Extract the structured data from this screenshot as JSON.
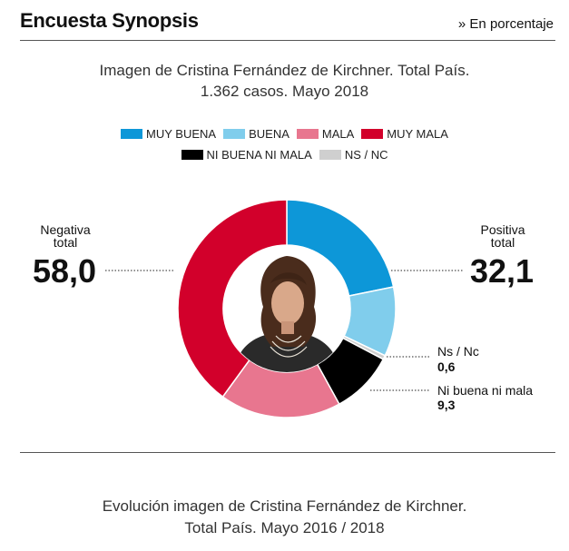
{
  "header": {
    "brand": "Encuesta Synopsis",
    "unit": "» En porcentaje"
  },
  "title": {
    "line1": "Imagen de Cristina Fernández de Kirchner. Total País.",
    "line2": "1.362 casos. Mayo 2018"
  },
  "chart_data": {
    "type": "pie",
    "title": "Imagen de Cristina Fernández de Kirchner. Total País. 1.362 casos. Mayo 2018",
    "legend_position": "top",
    "categories": [
      "MUY BUENA",
      "BUENA",
      "NS / NC",
      "NI BUENA NI MALA",
      "MALA",
      "MUY MALA"
    ],
    "values": [
      21.8,
      10.3,
      0.6,
      9.3,
      18.0,
      40.0
    ],
    "colors": [
      "#0d97d8",
      "#80cdec",
      "#cfcfcf",
      "#000000",
      "#e8768f",
      "#d2002b"
    ],
    "legend": [
      {
        "label": "MUY BUENA",
        "color": "#0d97d8"
      },
      {
        "label": "BUENA",
        "color": "#80cdec"
      },
      {
        "label": "MALA",
        "color": "#e8768f"
      },
      {
        "label": "MUY MALA",
        "color": "#d2002b"
      },
      {
        "label": "NI BUENA NI MALA",
        "color": "#000000"
      },
      {
        "label": "NS / NC",
        "color": "#cfcfcf"
      }
    ],
    "summary": {
      "negativa": {
        "label1": "Negativa",
        "label2": "total",
        "value": "58,0"
      },
      "positiva": {
        "label1": "Positiva",
        "label2": "total",
        "value": "32,1"
      },
      "nsnc": {
        "label": "Ns / Nc",
        "value": "0,6"
      },
      "neutral": {
        "label": "Ni buena ni mala",
        "value": "9,3"
      }
    }
  },
  "footer": {
    "line1": "Evolución imagen de Cristina Fernández de Kirchner.",
    "line2": "Total País. Mayo 2016 / 2018"
  }
}
